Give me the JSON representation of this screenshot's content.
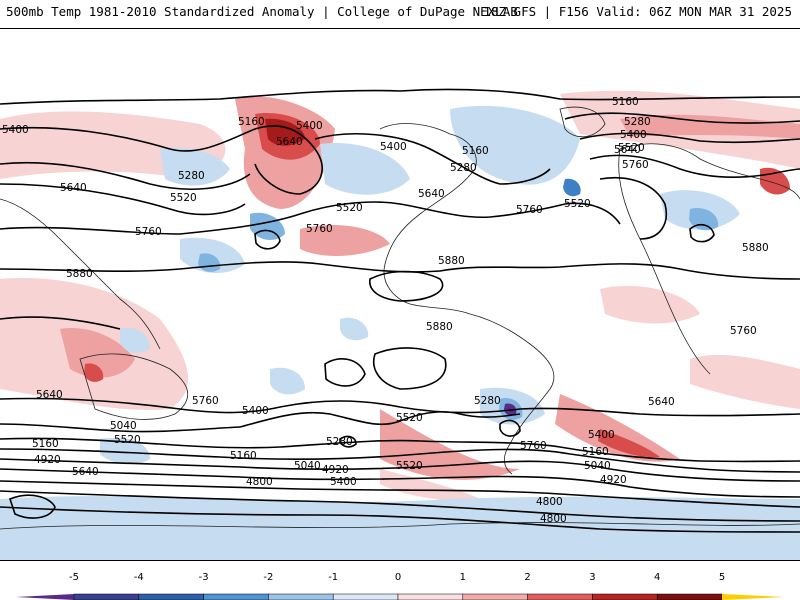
{
  "header": {
    "left_title": "500mb Temp 1981-2010 Standardized Anomaly | College of DuPage NEXLAB",
    "right_title": "18Z GFS | F156 Valid: 06Z MON MAR 31 2025"
  },
  "contour_labels": [
    {
      "text": "5400",
      "id": "c1"
    },
    {
      "text": "5160",
      "id": "c2"
    },
    {
      "text": "5400",
      "id": "c3"
    },
    {
      "text": "5640",
      "id": "c4"
    },
    {
      "text": "5280",
      "id": "c5"
    },
    {
      "text": "5520",
      "id": "c6"
    },
    {
      "text": "5640",
      "id": "c7"
    },
    {
      "text": "5760",
      "id": "c8"
    },
    {
      "text": "5880",
      "id": "c9"
    },
    {
      "text": "5400",
      "id": "c10"
    },
    {
      "text": "5160",
      "id": "c11"
    },
    {
      "text": "5280",
      "id": "c12"
    },
    {
      "text": "5640",
      "id": "c13"
    },
    {
      "text": "5520",
      "id": "c14"
    },
    {
      "text": "5760",
      "id": "c15"
    },
    {
      "text": "5760",
      "id": "c16"
    },
    {
      "text": "5160",
      "id": "c17"
    },
    {
      "text": "5280",
      "id": "c18"
    },
    {
      "text": "5400",
      "id": "c19"
    },
    {
      "text": "5520",
      "id": "c20"
    },
    {
      "text": "5640",
      "id": "c21"
    },
    {
      "text": "5760",
      "id": "c22"
    },
    {
      "text": "5880",
      "id": "c23"
    },
    {
      "text": "5520",
      "id": "c24"
    },
    {
      "text": "5880",
      "id": "c25"
    },
    {
      "text": "5880",
      "id": "c26"
    },
    {
      "text": "5760",
      "id": "c27"
    },
    {
      "text": "5640",
      "id": "c28"
    },
    {
      "text": "5760",
      "id": "c29"
    },
    {
      "text": "5400",
      "id": "c30"
    },
    {
      "text": "5040",
      "id": "c31"
    },
    {
      "text": "5520",
      "id": "c32"
    },
    {
      "text": "5160",
      "id": "c33"
    },
    {
      "text": "4920",
      "id": "c34"
    },
    {
      "text": "5640",
      "id": "c35"
    },
    {
      "text": "5520",
      "id": "c36"
    },
    {
      "text": "5280",
      "id": "c37"
    },
    {
      "text": "5160",
      "id": "c38"
    },
    {
      "text": "5040",
      "id": "c39"
    },
    {
      "text": "4920",
      "id": "c40"
    },
    {
      "text": "4800",
      "id": "c41"
    },
    {
      "text": "5400",
      "id": "c42"
    },
    {
      "text": "5520",
      "id": "c43"
    },
    {
      "text": "5280",
      "id": "c44"
    },
    {
      "text": "5760",
      "id": "c45"
    },
    {
      "text": "5640",
      "id": "c46"
    },
    {
      "text": "5400",
      "id": "c47"
    },
    {
      "text": "5160",
      "id": "c48"
    },
    {
      "text": "5040",
      "id": "c49"
    },
    {
      "text": "4920",
      "id": "c50"
    },
    {
      "text": "4800",
      "id": "c51"
    },
    {
      "text": "4800",
      "id": "c52"
    }
  ],
  "colorbar": {
    "ticks": [
      "-5",
      "-4",
      "-3",
      "-2",
      "-1",
      "0",
      "1",
      "2",
      "3",
      "4",
      "5"
    ],
    "colors": [
      "#5b2a86",
      "#1f3f77",
      "#3f7fc4",
      "#7fb4e0",
      "#c6dcf0",
      "#ffffff",
      "#f7d3d3",
      "#eda1a1",
      "#d94c4c",
      "#a51a1a",
      "#ffcc00"
    ]
  }
}
